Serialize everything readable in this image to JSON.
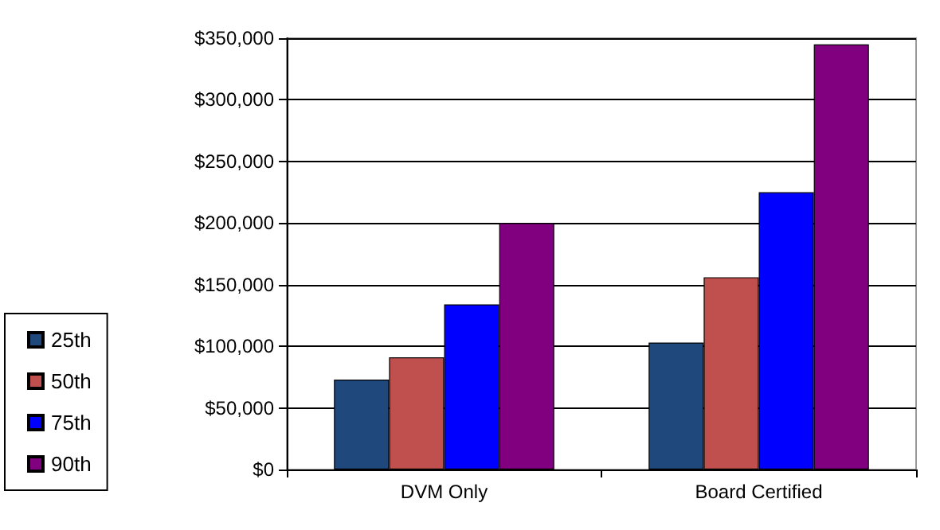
{
  "chart_data": {
    "type": "bar",
    "categories": [
      "DVM Only",
      "Board Certified"
    ],
    "series": [
      {
        "name": "25th",
        "color": "#1f497d",
        "values": [
          73000,
          103000
        ]
      },
      {
        "name": "50th",
        "color": "#c0504d",
        "values": [
          91000,
          156000
        ]
      },
      {
        "name": "75th",
        "color": "#0000ff",
        "values": [
          134000,
          225000
        ]
      },
      {
        "name": "90th",
        "color": "#800080",
        "values": [
          200000,
          345000
        ]
      }
    ],
    "ylim": [
      0,
      350000
    ],
    "yticks": [
      {
        "value": 0,
        "label": "$0"
      },
      {
        "value": 50000,
        "label": "$50,000"
      },
      {
        "value": 100000,
        "label": "$100,000"
      },
      {
        "value": 150000,
        "label": "$150,000"
      },
      {
        "value": 200000,
        "label": "$200,000"
      },
      {
        "value": 250000,
        "label": "$250,000"
      },
      {
        "value": 300000,
        "label": "$300,000"
      },
      {
        "value": 350000,
        "label": "$350,000"
      }
    ],
    "grid": "y",
    "legend": "left"
  }
}
